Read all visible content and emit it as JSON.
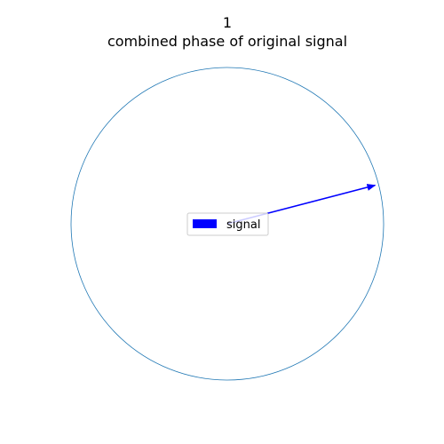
{
  "chart_data": {
    "type": "polar-vector",
    "title_line1": "1",
    "title_line2": "combined phase of original signal",
    "circle_color": "#1f77b4",
    "series": [
      {
        "name": "signal",
        "color": "#0000ff",
        "magnitude": 1.0,
        "angle_deg": 14.6
      }
    ],
    "legend": {
      "position": "center"
    },
    "grid": false
  }
}
